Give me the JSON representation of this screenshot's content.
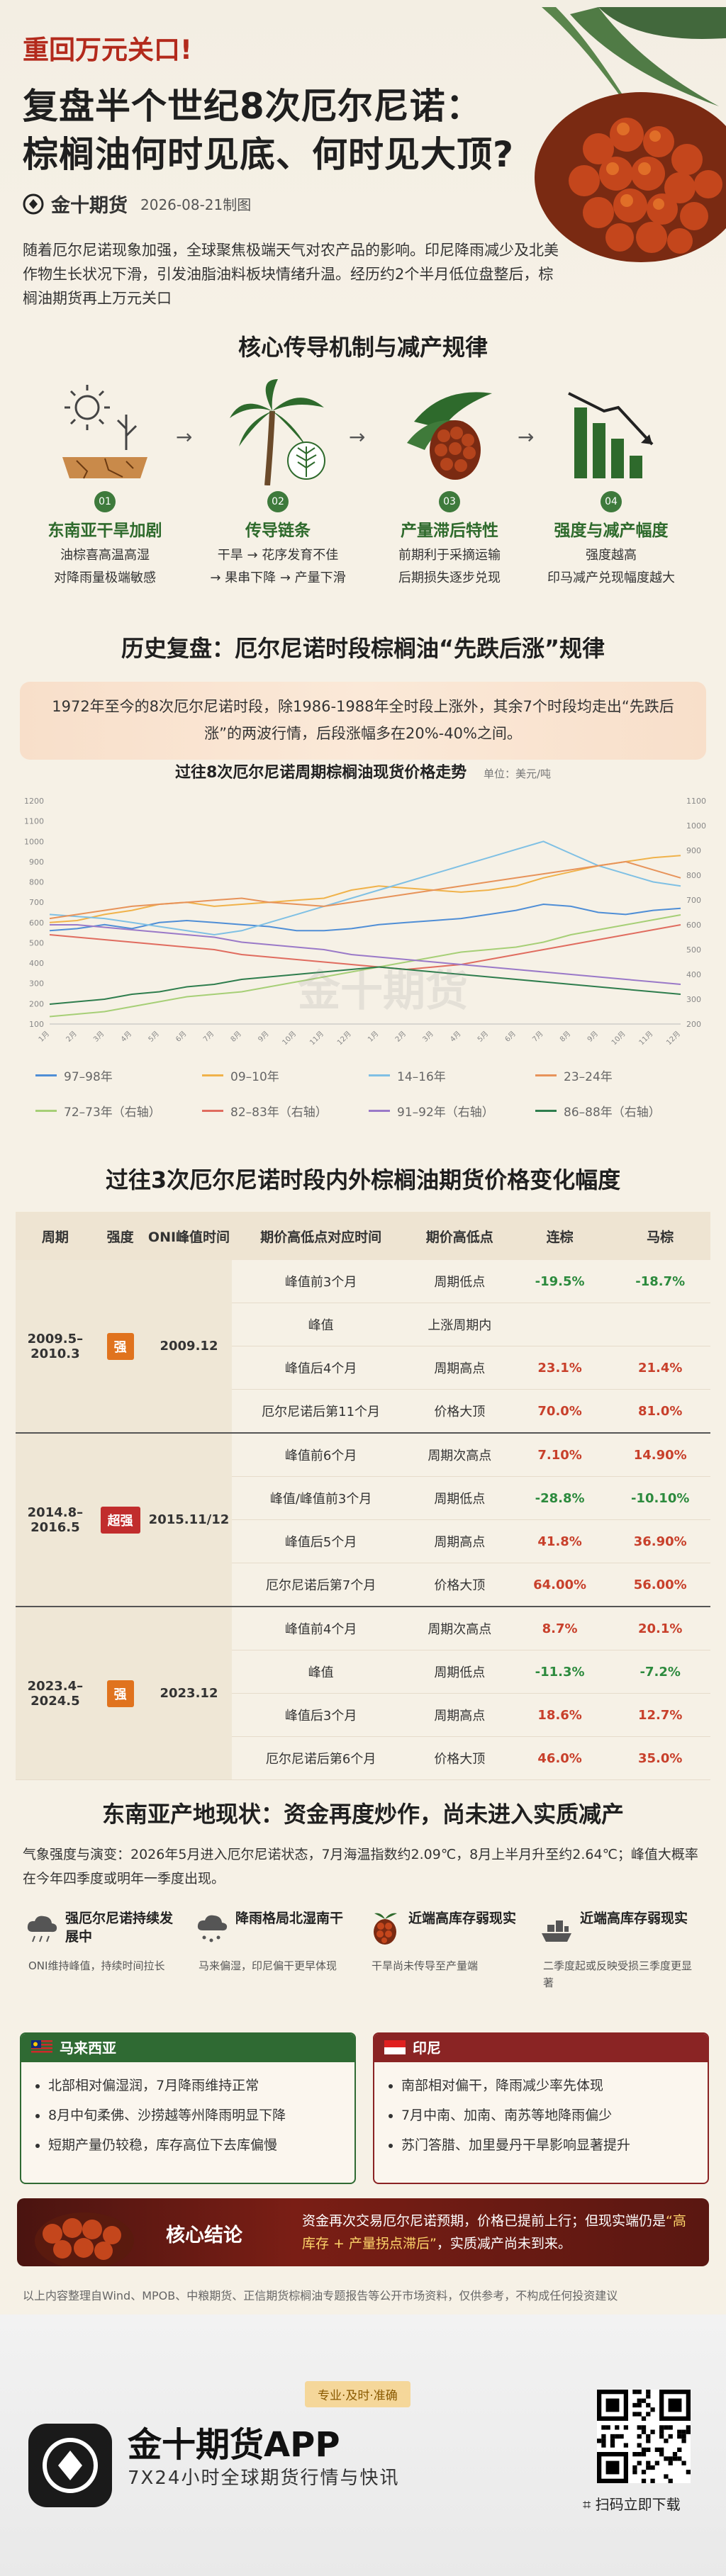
{
  "header": {
    "kicker": "重回万元关口!",
    "title_line1": "复盘半个世纪8次厄尔尼诺：",
    "title_line2": "棕榈油何时见底、何时见大顶?",
    "brand": "金十期货",
    "date": "2026-08-21制图",
    "intro": "随着厄尔尼诺现象加强，全球聚焦极端天气对农产品的影响。印尼降雨减少及北美作物生长状况下滑，引发油脂油料板块情绪升温。经历约2个半月低位盘整后，棕榈油期货再上万元关口"
  },
  "mechanism": {
    "title": "核心传导机制与减产规律",
    "steps": [
      {
        "num": "01",
        "name": "东南亚干旱加剧",
        "d1": "油棕喜高温高湿",
        "d2": "对降雨量极端敏感",
        "icon": "drought-icon"
      },
      {
        "num": "02",
        "name": "传导链条",
        "d1": "干旱 → 花序发育不佳",
        "d2": "→ 果串下降 → 产量下滑",
        "icon": "palm-tree-icon"
      },
      {
        "num": "03",
        "name": "产量滞后特性",
        "d1": "前期利于采摘运输",
        "d2": "后期损失逐步兑现",
        "icon": "palm-fruit-icon"
      },
      {
        "num": "04",
        "name": "强度与减产幅度",
        "d1": "强度越高",
        "d2": "印马减产兑现幅度越大",
        "icon": "declining-bar-icon"
      }
    ],
    "arrow": "→"
  },
  "history": {
    "title": "历史复盘：厄尔尼诺时段棕榈油“先跌后涨”规律",
    "summary": "1972年至今的8次厄尔尼诺时段，除1986-1988年全时段上涨外，其余7个时段均走出“先跌后涨”的两波行情，后段涨幅多在20%-40%之间。"
  },
  "chart_data": {
    "type": "line",
    "title": "过往8次厄尔尼诺周期棕榈油现货价格走势",
    "unit": "单位：美元/吨",
    "x": [
      1,
      2,
      3,
      4,
      5,
      6,
      7,
      8,
      9,
      10,
      11,
      12,
      13,
      14,
      15,
      16,
      17,
      18,
      19,
      20,
      21,
      22,
      23,
      24
    ],
    "x_tick_labels": [
      "1月",
      "2月",
      "3月",
      "4月",
      "5月",
      "6月",
      "7月",
      "8月",
      "9月",
      "10月",
      "11月",
      "12月",
      "1月",
      "2月",
      "3月",
      "4月",
      "5月",
      "6月",
      "7月",
      "8月",
      "9月",
      "10月",
      "11月",
      "12月"
    ],
    "ylim_left": [
      100,
      1200
    ],
    "yticks_left": [
      100,
      200,
      300,
      400,
      500,
      600,
      700,
      800,
      900,
      1000,
      1100,
      1200
    ],
    "ylim_right": [
      200,
      1100
    ],
    "yticks_right": [
      200,
      300,
      400,
      500,
      600,
      700,
      800,
      900,
      1000,
      1100
    ],
    "grid": false,
    "legend_position": "bottom",
    "series": [
      {
        "name": "97–98年",
        "axis": "left",
        "color": "#4f8ed6",
        "values": [
          560,
          570,
          590,
          570,
          600,
          610,
          600,
          590,
          580,
          560,
          560,
          570,
          590,
          600,
          610,
          620,
          640,
          660,
          690,
          680,
          650,
          640,
          660,
          670
        ]
      },
      {
        "name": "09–10年",
        "axis": "left",
        "color": "#f0b24a",
        "values": [
          600,
          610,
          640,
          660,
          690,
          700,
          680,
          690,
          700,
          710,
          720,
          760,
          780,
          770,
          760,
          750,
          760,
          780,
          820,
          850,
          880,
          900,
          920,
          930
        ]
      },
      {
        "name": "14–16年",
        "axis": "left",
        "color": "#7fc0e4",
        "values": [
          640,
          630,
          620,
          600,
          580,
          560,
          540,
          560,
          600,
          640,
          680,
          720,
          760,
          800,
          840,
          880,
          920,
          960,
          1000,
          940,
          880,
          840,
          800,
          780
        ]
      },
      {
        "name": "23–24年",
        "axis": "left",
        "color": "#e7935a",
        "values": [
          620,
          640,
          660,
          680,
          690,
          700,
          710,
          720,
          700,
          690,
          680,
          700,
          720,
          740,
          760,
          780,
          800,
          820,
          840,
          860,
          880,
          900,
          860,
          820
        ]
      },
      {
        "name": "72–73年（右轴）",
        "axis": "right",
        "color": "#a6cf76",
        "values": [
          230,
          240,
          250,
          270,
          290,
          310,
          320,
          330,
          350,
          370,
          390,
          410,
          430,
          450,
          470,
          490,
          500,
          510,
          530,
          560,
          580,
          600,
          620,
          640
        ]
      },
      {
        "name": "82–83年（右轴）",
        "axis": "right",
        "color": "#e06c5f",
        "values": [
          560,
          550,
          540,
          530,
          520,
          510,
          500,
          480,
          470,
          460,
          450,
          440,
          430,
          420,
          430,
          440,
          460,
          480,
          500,
          520,
          540,
          560,
          580,
          600
        ]
      },
      {
        "name": "91–92年（右轴）",
        "axis": "right",
        "color": "#9a79c8",
        "values": [
          600,
          600,
          590,
          580,
          570,
          560,
          550,
          530,
          520,
          510,
          500,
          480,
          470,
          460,
          450,
          440,
          430,
          420,
          410,
          400,
          390,
          380,
          370,
          360
        ]
      },
      {
        "name": "86–88年（右轴）",
        "axis": "right",
        "color": "#2e7d4d",
        "values": [
          280,
          290,
          300,
          320,
          330,
          350,
          360,
          380,
          390,
          400,
          410,
          420,
          430,
          420,
          410,
          400,
          390,
          380,
          370,
          360,
          350,
          340,
          330,
          320
        ]
      }
    ]
  },
  "table": {
    "title": "过往3次厄尔尼诺时段内外棕榈油期货价格变化幅度",
    "headers": [
      "周期",
      "强度",
      "ONI峰值时间",
      "期价高低点对应时间",
      "期价高低点",
      "连棕",
      "马棕"
    ],
    "groups": [
      {
        "period": "2009.5–2010.3",
        "strength": "强",
        "strength_color": "orange",
        "oni_peak": "2009.12",
        "rows": [
          {
            "time": "峰值前3个月",
            "point": "周期低点",
            "dalian": "-19.5%",
            "malaysia": "-18.7%"
          },
          {
            "time": "峰值",
            "point": "上涨周期内",
            "dalian": "",
            "malaysia": ""
          },
          {
            "time": "峰值后4个月",
            "point": "周期高点",
            "dalian": "23.1%",
            "malaysia": "21.4%"
          },
          {
            "time": "厄尔尼诺后第11个月",
            "point": "价格大顶",
            "dalian": "70.0%",
            "malaysia": "81.0%"
          }
        ]
      },
      {
        "period": "2014.8–2016.5",
        "strength": "超强",
        "strength_color": "red",
        "oni_peak": "2015.11/12",
        "rows": [
          {
            "time": "峰值前6个月",
            "point": "周期次高点",
            "dalian": "7.10%",
            "malaysia": "14.90%"
          },
          {
            "time": "峰值/峰值前3个月",
            "point": "周期低点",
            "dalian": "-28.8%",
            "malaysia": "-10.10%"
          },
          {
            "time": "峰值后5个月",
            "point": "周期高点",
            "dalian": "41.8%",
            "malaysia": "36.90%"
          },
          {
            "time": "厄尔尼诺后第7个月",
            "point": "价格大顶",
            "dalian": "64.00%",
            "malaysia": "56.00%"
          }
        ]
      },
      {
        "period": "2023.4–2024.5",
        "strength": "强",
        "strength_color": "orange",
        "oni_peak": "2023.12",
        "rows": [
          {
            "time": "峰值前4个月",
            "point": "周期次高点",
            "dalian": "8.7%",
            "malaysia": "20.1%"
          },
          {
            "time": "峰值",
            "point": "周期低点",
            "dalian": "-11.3%",
            "malaysia": "-7.2%"
          },
          {
            "time": "峰值后3个月",
            "point": "周期高点",
            "dalian": "18.6%",
            "malaysia": "12.7%"
          },
          {
            "time": "厄尔尼诺后第6个月",
            "point": "价格大顶",
            "dalian": "46.0%",
            "malaysia": "35.0%"
          }
        ]
      }
    ]
  },
  "sea": {
    "title": "东南亚产地现状：资金再度炒作，尚未进入实质减产",
    "text": "气象强度与演变：2026年5月进入厄尔尼诺状态，7月海温指数约2.09℃，8月上半月升至约2.64℃；峰值大概率在今年四季度或明年一季度出现。",
    "cards": [
      {
        "icon": "rain-cloud-icon",
        "h1": "强厄尔尼诺持续发展中",
        "h2": "ONI维持峰值，持续时间拉长"
      },
      {
        "icon": "rain-north-south-icon",
        "h1": "降雨格局北湿南干",
        "h2": "马来偏湿，印尼偏干更早体现"
      },
      {
        "icon": "palm-fruit-icon",
        "h1": "近端高库存弱现实",
        "h2": "干旱尚未传导至产量端"
      },
      {
        "icon": "cargo-ship-icon",
        "h1": "近端高库存弱现实",
        "h2": "二季度起或反映受损三季度更显著"
      }
    ],
    "malaysia": {
      "name": "马来西亚",
      "items": [
        "北部相对偏湿润，7月降雨维持正常",
        "8月中旬柔佛、沙捞越等州降雨明显下降",
        "短期产量仍较稳，库存高位下去库偏慢"
      ]
    },
    "indonesia": {
      "name": "印尼",
      "items": [
        "南部相对偏干，降雨减少率先体现",
        "7月中南、加南、南苏等地降雨偏少",
        "苏门答腊、加里曼丹干旱影响显著提升"
      ]
    }
  },
  "conclusion": {
    "label": "核心结论",
    "text_a": "资金再次交易厄尔尼诺预期，价格已提前上行；但现实端仍是",
    "highlight": "“高库存 + 产量拐点滞后”",
    "text_b": "，实质减产尚未到来。"
  },
  "source": "以上内容整理自Wind、MPOB、中粮期货、正信期货棕榈油专题报告等公开市场资料，仅供参考，不构成任何投资建议",
  "footer": {
    "tagline": "专业·及时·准确",
    "app_name": "金十期货APP",
    "app_sub": "7X24小时全球期货行情与快讯",
    "qr_text": "扫码立即下载",
    "watermark": "金十期货"
  },
  "colors": {
    "accent_red": "#b32a1c",
    "green": "#2e6a2c",
    "dark_red": "#8a2424"
  }
}
